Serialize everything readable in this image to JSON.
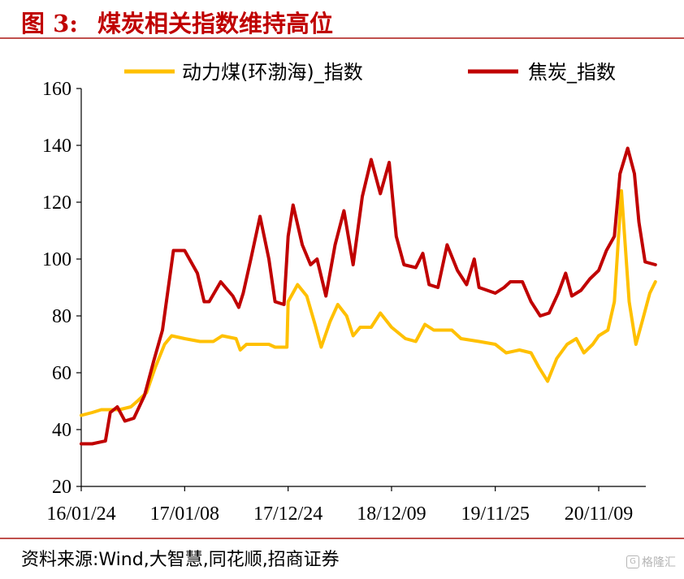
{
  "figure": {
    "label": "图 3:",
    "title": "煤炭相关指数维持高位"
  },
  "source": "资料来源:Wind,大智慧,同花顺,招商证券",
  "watermark": {
    "icon": "G",
    "text": "格隆汇"
  },
  "colors": {
    "coal": "#ffc000",
    "coke": "#c00000",
    "accent": "#c0504d"
  },
  "chart_data": {
    "type": "line",
    "title": "",
    "xlabel": "",
    "ylabel": "",
    "ylim": [
      20,
      160
    ],
    "yticks": [
      20,
      40,
      60,
      80,
      100,
      120,
      140,
      160
    ],
    "xticks": [
      "16/01/24",
      "17/01/08",
      "17/12/24",
      "18/12/09",
      "19/11/25",
      "20/11/09"
    ],
    "xrange": [
      "2016-01-24",
      "2021-06-20"
    ],
    "grid": false,
    "legend_position": "top",
    "series": [
      {
        "name": "动力煤(环渤海)_指数",
        "color": "#ffc000",
        "points": [
          [
            "2016-01-24",
            45
          ],
          [
            "2016-03-01",
            46
          ],
          [
            "2016-04-01",
            47
          ],
          [
            "2016-06-01",
            47
          ],
          [
            "2016-07-10",
            48
          ],
          [
            "2016-08-01",
            50
          ],
          [
            "2016-09-01",
            53
          ],
          [
            "2016-10-01",
            62
          ],
          [
            "2016-11-01",
            70
          ],
          [
            "2016-11-25",
            73
          ],
          [
            "2017-01-08",
            72
          ],
          [
            "2017-03-01",
            71
          ],
          [
            "2017-04-15",
            71
          ],
          [
            "2017-05-15",
            73
          ],
          [
            "2017-07-01",
            72
          ],
          [
            "2017-07-15",
            68
          ],
          [
            "2017-08-05",
            70
          ],
          [
            "2017-09-15",
            70
          ],
          [
            "2017-10-20",
            70
          ],
          [
            "2017-11-10",
            69
          ],
          [
            "2017-12-20",
            69
          ],
          [
            "2017-12-24",
            85
          ],
          [
            "2018-01-25",
            91
          ],
          [
            "2018-02-25",
            87
          ],
          [
            "2018-03-25",
            77
          ],
          [
            "2018-04-15",
            69
          ],
          [
            "2018-05-15",
            78
          ],
          [
            "2018-06-10",
            84
          ],
          [
            "2018-07-10",
            80
          ],
          [
            "2018-08-01",
            73
          ],
          [
            "2018-08-25",
            76
          ],
          [
            "2018-10-01",
            76
          ],
          [
            "2018-11-01",
            81
          ],
          [
            "2018-12-09",
            76
          ],
          [
            "2019-01-25",
            72
          ],
          [
            "2019-03-01",
            71
          ],
          [
            "2019-04-01",
            77
          ],
          [
            "2019-05-01",
            75
          ],
          [
            "2019-07-01",
            75
          ],
          [
            "2019-08-01",
            72
          ],
          [
            "2019-10-01",
            71
          ],
          [
            "2019-11-25",
            70
          ],
          [
            "2020-01-01",
            67
          ],
          [
            "2020-02-15",
            68
          ],
          [
            "2020-03-25",
            67
          ],
          [
            "2020-04-20",
            62
          ],
          [
            "2020-05-20",
            57
          ],
          [
            "2020-06-20",
            65
          ],
          [
            "2020-07-25",
            70
          ],
          [
            "2020-08-25",
            72
          ],
          [
            "2020-09-20",
            67
          ],
          [
            "2020-10-20",
            70
          ],
          [
            "2020-11-09",
            73
          ],
          [
            "2020-12-10",
            75
          ],
          [
            "2021-01-01",
            85
          ],
          [
            "2021-01-25",
            124
          ],
          [
            "2021-02-20",
            85
          ],
          [
            "2021-03-15",
            70
          ],
          [
            "2021-04-05",
            78
          ],
          [
            "2021-05-01",
            88
          ],
          [
            "2021-05-20",
            92
          ]
        ]
      },
      {
        "name": "焦炭_指数",
        "color": "#c00000",
        "points": [
          [
            "2016-01-24",
            35
          ],
          [
            "2016-03-01",
            35
          ],
          [
            "2016-04-15",
            36
          ],
          [
            "2016-05-01",
            46
          ],
          [
            "2016-05-25",
            48
          ],
          [
            "2016-06-20",
            43
          ],
          [
            "2016-07-20",
            44
          ],
          [
            "2016-08-25",
            52
          ],
          [
            "2016-09-25",
            64
          ],
          [
            "2016-10-25",
            75
          ],
          [
            "2016-12-01",
            103
          ],
          [
            "2017-01-08",
            103
          ],
          [
            "2017-02-20",
            95
          ],
          [
            "2017-03-15",
            85
          ],
          [
            "2017-04-01",
            85
          ],
          [
            "2017-05-10",
            92
          ],
          [
            "2017-06-20",
            87
          ],
          [
            "2017-07-10",
            83
          ],
          [
            "2017-07-25",
            88
          ],
          [
            "2017-08-20",
            100
          ],
          [
            "2017-09-20",
            115
          ],
          [
            "2017-10-20",
            100
          ],
          [
            "2017-11-10",
            85
          ],
          [
            "2017-12-10",
            84
          ],
          [
            "2017-12-24",
            108
          ],
          [
            "2018-01-10",
            119
          ],
          [
            "2018-02-10",
            105
          ],
          [
            "2018-03-10",
            98
          ],
          [
            "2018-04-01",
            100
          ],
          [
            "2018-05-01",
            87
          ],
          [
            "2018-06-01",
            105
          ],
          [
            "2018-07-01",
            117
          ],
          [
            "2018-08-01",
            98
          ],
          [
            "2018-09-01",
            122
          ],
          [
            "2018-10-01",
            135
          ],
          [
            "2018-11-01",
            123
          ],
          [
            "2018-12-01",
            134
          ],
          [
            "2018-12-25",
            108
          ],
          [
            "2019-01-20",
            98
          ],
          [
            "2019-03-01",
            97
          ],
          [
            "2019-03-25",
            102
          ],
          [
            "2019-04-15",
            91
          ],
          [
            "2019-05-15",
            90
          ],
          [
            "2019-06-15",
            105
          ],
          [
            "2019-07-20",
            96
          ],
          [
            "2019-08-20",
            91
          ],
          [
            "2019-09-15",
            100
          ],
          [
            "2019-10-01",
            90
          ],
          [
            "2019-11-25",
            88
          ],
          [
            "2019-12-25",
            90
          ],
          [
            "2020-01-15",
            92
          ],
          [
            "2020-02-25",
            92
          ],
          [
            "2020-03-25",
            85
          ],
          [
            "2020-04-25",
            80
          ],
          [
            "2020-05-25",
            81
          ],
          [
            "2020-06-25",
            88
          ],
          [
            "2020-07-20",
            95
          ],
          [
            "2020-08-10",
            87
          ],
          [
            "2020-09-10",
            89
          ],
          [
            "2020-10-10",
            93
          ],
          [
            "2020-11-09",
            96
          ],
          [
            "2020-12-05",
            103
          ],
          [
            "2021-01-01",
            108
          ],
          [
            "2021-01-20",
            130
          ],
          [
            "2021-02-15",
            139
          ],
          [
            "2021-03-10",
            130
          ],
          [
            "2021-03-25",
            113
          ],
          [
            "2021-04-15",
            99
          ],
          [
            "2021-05-20",
            98
          ]
        ]
      }
    ]
  }
}
